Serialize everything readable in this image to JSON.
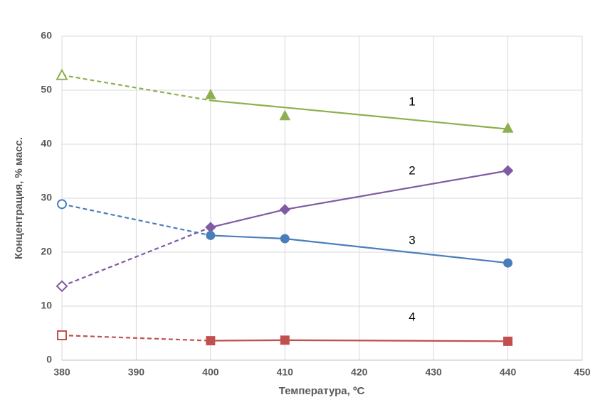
{
  "chart_data": {
    "type": "line",
    "x_label": "Температура, ºС",
    "y_label": "Концентрация, % масс.",
    "xlim": [
      380,
      450
    ],
    "xticks": [
      380,
      390,
      400,
      410,
      420,
      430,
      440,
      450
    ],
    "ylim": [
      0,
      60
    ],
    "yticks": [
      0,
      10,
      20,
      30,
      40,
      50,
      60
    ],
    "grid": true,
    "x": [
      380,
      400,
      410,
      440
    ],
    "series": [
      {
        "name": "1",
        "color": "#8db04e",
        "marker": "triangle",
        "values": [
          52.8,
          49.2,
          45.3,
          43.0
        ],
        "line_values": [
          52.8,
          48.1,
          46.8,
          42.8
        ]
      },
      {
        "name": "2",
        "color": "#7f5ba3",
        "marker": "diamond",
        "values": [
          13.7,
          24.6,
          27.9,
          35.1
        ]
      },
      {
        "name": "3",
        "color": "#4a7ebb",
        "marker": "circle",
        "values": [
          28.9,
          23.1,
          22.5,
          18.0
        ]
      },
      {
        "name": "4",
        "color": "#c0504d",
        "marker": "square",
        "values": [
          4.6,
          3.6,
          3.7,
          3.5
        ]
      }
    ]
  }
}
